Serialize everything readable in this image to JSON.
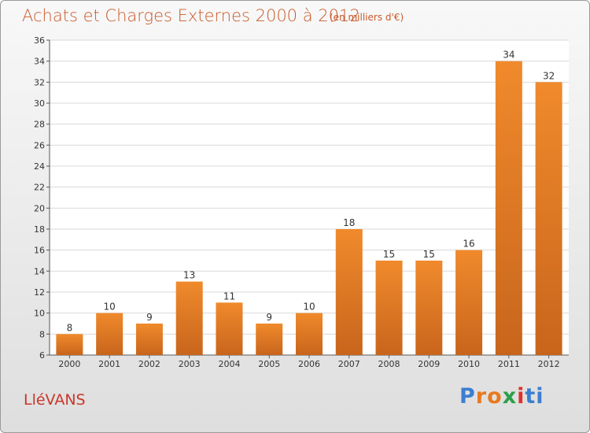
{
  "title": "Achats et Charges Externes 2000 à 2012",
  "subtitle": "(en milliers d'€)",
  "town": "LléVANS",
  "logo": {
    "text": "Proxiti",
    "letters": [
      "P",
      "r",
      "o",
      "x",
      "i",
      "t",
      "i"
    ],
    "colors": [
      "#3a7fd0",
      "#e8791d",
      "#e8791d",
      "#2aa04a",
      "#e0302a",
      "#3a7fd0",
      "#3a7fd0"
    ]
  },
  "colors": {
    "bar": "#f08a2c",
    "bar_dark": "#c8651c",
    "text": "#c85a2a",
    "grid": "#d9d9d9"
  },
  "chart_data": {
    "type": "bar",
    "categories": [
      "2000",
      "2001",
      "2002",
      "2003",
      "2004",
      "2005",
      "2006",
      "2007",
      "2008",
      "2009",
      "2010",
      "2011",
      "2012"
    ],
    "values": [
      8,
      10,
      9,
      13,
      11,
      9,
      10,
      18,
      15,
      15,
      16,
      34,
      32
    ],
    "ylim": [
      6,
      36
    ],
    "yticks": [
      6,
      8,
      10,
      12,
      14,
      16,
      18,
      20,
      22,
      24,
      26,
      28,
      30,
      32,
      34,
      36
    ],
    "grid": true,
    "xlabel": "",
    "ylabel": ""
  }
}
